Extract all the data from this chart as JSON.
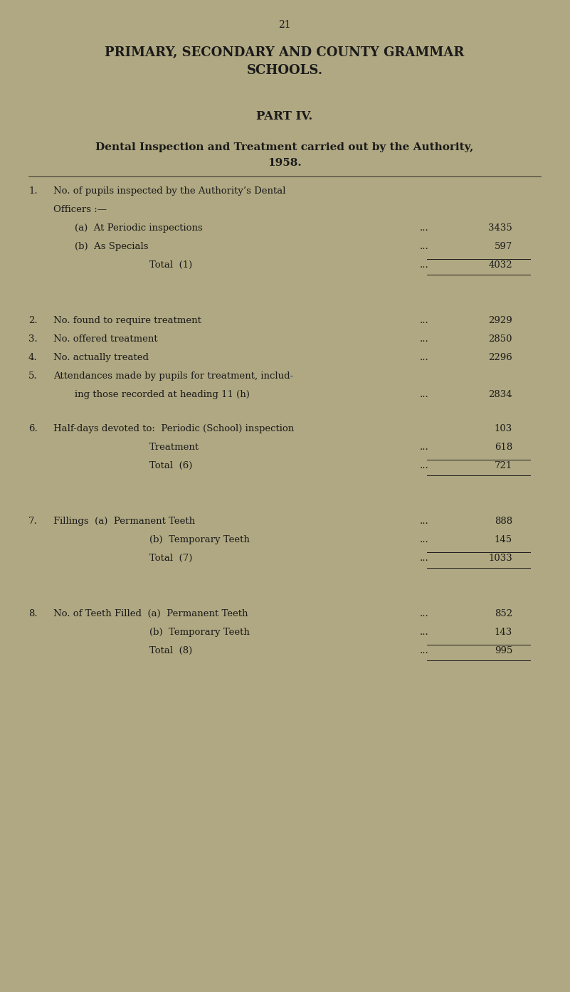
{
  "bg_color": "#b0a882",
  "text_color": "#1a1a1a",
  "page_number": "21",
  "title1": "PRIMARY, SECONDARY AND COUNTY GRAMMAR",
  "title2": "SCHOOLS.",
  "part": "PART IV.",
  "subtitle1": "Dental Inspection and Treatment carried out by the Authority,",
  "subtitle2": "1958.",
  "lines": [
    {
      "num": "1.",
      "indent": 0,
      "text": "No. of pupils inspected by the Authority’s Dental",
      "dots": false,
      "value": "",
      "group_gap_before": false
    },
    {
      "num": "",
      "indent": 0,
      "text": "Officers :—",
      "dots": false,
      "value": "",
      "group_gap_before": false
    },
    {
      "num": "",
      "indent": 1,
      "text": "(a)  At Periodic inspections",
      "dots": true,
      "value": "3435",
      "group_gap_before": false
    },
    {
      "num": "",
      "indent": 1,
      "text": "(b)  As Specials",
      "dots": true,
      "value": "597",
      "group_gap_before": false
    },
    {
      "num": "",
      "indent": 2,
      "text": "Total  (1)",
      "dots": true,
      "value": "4032",
      "total": true,
      "group_gap_before": false
    },
    {
      "num": "2.",
      "indent": 0,
      "text": "No. found to require treatment",
      "dots": true,
      "value": "2929",
      "group_gap_before": true
    },
    {
      "num": "3.",
      "indent": 0,
      "text": "No. offered treatment",
      "dots": true,
      "value": "2850",
      "group_gap_before": false
    },
    {
      "num": "4.",
      "indent": 0,
      "text": "No. actually treated",
      "dots": true,
      "value": "2296",
      "group_gap_before": false
    },
    {
      "num": "5.",
      "indent": 0,
      "text": "Attendances made by pupils for treatment, includ-",
      "dots": false,
      "value": "",
      "group_gap_before": false
    },
    {
      "num": "",
      "indent": 1,
      "text": "ing those recorded at heading 11 (h)",
      "dots": true,
      "value": "2834",
      "group_gap_before": false
    },
    {
      "num": "6.",
      "indent": 0,
      "text": "Half-days devoted to:  Periodic (School) inspection",
      "dots": false,
      "value": "103",
      "group_gap_before": true
    },
    {
      "num": "",
      "indent": 2,
      "text": "Treatment",
      "dots": true,
      "value": "618",
      "group_gap_before": false
    },
    {
      "num": "",
      "indent": 2,
      "text": "Total  (6)",
      "dots": true,
      "value": "721",
      "total": true,
      "group_gap_before": false
    },
    {
      "num": "7.",
      "indent": 0,
      "text": "Fillings  (a)  Permanent Teeth",
      "dots": true,
      "value": "888",
      "group_gap_before": true
    },
    {
      "num": "",
      "indent": 2,
      "text": "(b)  Temporary Teeth",
      "dots": true,
      "value": "145",
      "group_gap_before": false
    },
    {
      "num": "",
      "indent": 2,
      "text": "Total  (7)",
      "dots": true,
      "value": "1033",
      "total": true,
      "group_gap_before": false
    },
    {
      "num": "8.",
      "indent": 0,
      "text": "No. of Teeth Filled  (a)  Permanent Teeth",
      "dots": true,
      "value": "852",
      "group_gap_before": true
    },
    {
      "num": "",
      "indent": 2,
      "text": "(b)  Temporary Teeth",
      "dots": true,
      "value": "143",
      "group_gap_before": false
    },
    {
      "num": "",
      "indent": 2,
      "text": "Total  (8)",
      "dots": true,
      "value": "995",
      "total": true,
      "group_gap_before": false
    }
  ]
}
